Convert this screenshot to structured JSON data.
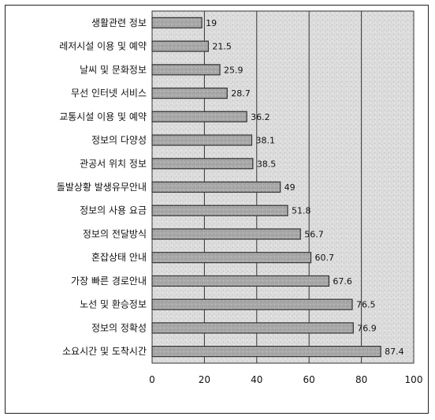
{
  "chart_data": {
    "type": "bar",
    "orientation": "horizontal",
    "categories": [
      "생활관련 정보",
      "레저시설 이용 및 예약",
      "날씨 및 문화정보",
      "무선 인터넷 서비스",
      "교통시설 이용 및 예약",
      "정보의 다양성",
      "관공서 위치 정보",
      "돌발상황 발생유무안내",
      "정보의 사용 요금",
      "정보의 전달방식",
      "혼잡상태 안내",
      "가장 빠른 경로안내",
      "노선 및 환승정보",
      "정보의 정확성",
      "소요시간 및 도착시간"
    ],
    "values": [
      19,
      21.5,
      25.9,
      28.7,
      36.2,
      38.1,
      38.5,
      49,
      51.8,
      56.7,
      60.7,
      67.6,
      76.5,
      76.9,
      87.4
    ],
    "value_labels": [
      "19",
      "21.5",
      "25.9",
      "28.7",
      "36.2",
      "38.1",
      "38.5",
      "49",
      "51.8",
      "56.7",
      "60.7",
      "67.6",
      "76.5",
      "76.9",
      "87.4"
    ],
    "xlim": [
      0,
      100
    ],
    "xticks": [
      0,
      20,
      40,
      60,
      80,
      100
    ],
    "xtick_labels": [
      "0",
      "20",
      "40",
      "60",
      "80",
      "100"
    ],
    "grid": "vertical",
    "title": "",
    "xlabel": "",
    "ylabel": "",
    "colors": {
      "bar_fill": "#a9a9a9",
      "bar_stroke": "#333333",
      "plot_background": "#d9d9d9",
      "grid": "#333333"
    }
  }
}
